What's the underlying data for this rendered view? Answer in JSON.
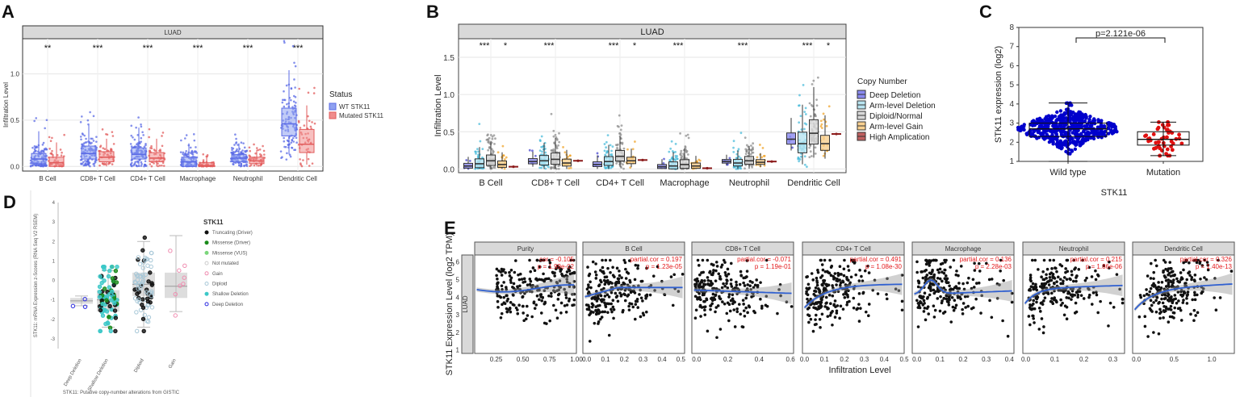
{
  "figure": {
    "panel_labels": [
      "A",
      "B",
      "C",
      "D",
      "E"
    ]
  },
  "chart_data": [
    {
      "panel": "A",
      "type": "box",
      "strip": "LUAD",
      "ylabel": "Infiltration Level",
      "ylim": [
        -0.05,
        1.38
      ],
      "yticks": [
        "0.0",
        "0.5",
        "1.0"
      ],
      "categories": [
        "B Cell",
        "CD8+ T Cell",
        "CD4+ T Cell",
        "Macrophage",
        "Neutrophil",
        "Dendritic Cell"
      ],
      "significance": [
        "**",
        "***",
        "***",
        "***",
        "***",
        "***"
      ],
      "legend_title": "Status",
      "series": [
        {
          "name": "WT STK11",
          "color": "#5b6be6",
          "fill": "#8ea0f0",
          "boxes": [
            [
              0.0,
              0.03,
              0.08,
              0.14,
              0.38
            ],
            [
              0.0,
              0.08,
              0.14,
              0.22,
              0.45
            ],
            [
              0.0,
              0.08,
              0.13,
              0.2,
              0.42
            ],
            [
              0.0,
              0.0,
              0.05,
              0.1,
              0.25
            ],
            [
              0.0,
              0.05,
              0.09,
              0.13,
              0.25
            ],
            [
              0.13,
              0.33,
              0.46,
              0.63,
              1.04
            ]
          ]
        },
        {
          "name": "Mutated STK11",
          "color": "#e15b5b",
          "fill": "#f08c8c",
          "boxes": [
            [
              0.0,
              0.0,
              0.04,
              0.1,
              0.26
            ],
            [
              0.0,
              0.05,
              0.1,
              0.16,
              0.3
            ],
            [
              0.0,
              0.05,
              0.09,
              0.15,
              0.3
            ],
            [
              0.0,
              0.0,
              0.01,
              0.04,
              0.1
            ],
            [
              0.0,
              0.03,
              0.06,
              0.1,
              0.18
            ],
            [
              0.02,
              0.15,
              0.24,
              0.4,
              0.66
            ]
          ]
        }
      ]
    },
    {
      "panel": "B",
      "type": "box",
      "strip": "LUAD",
      "ylabel": "Infiltration Level",
      "ylim": [
        -0.05,
        1.75
      ],
      "yticks": [
        "0.0",
        "0.5",
        "1.0",
        "1.5"
      ],
      "categories": [
        "B Cell",
        "CD8+ T Cell",
        "CD4+ T Cell",
        "Macrophage",
        "Neutrophil",
        "Dendritic Cell"
      ],
      "significance": [
        [
          "***",
          "*"
        ],
        [
          "***",
          ""
        ],
        [
          "***",
          "*"
        ],
        [
          "***",
          ""
        ],
        [
          "***",
          ""
        ],
        [
          "***",
          "*"
        ]
      ],
      "legend_title": "Copy Number",
      "series": [
        {
          "name": "Deep Deletion",
          "color": "#3a3acc",
          "fill": "#8a8af0",
          "medians": [
            0.04,
            0.1,
            0.06,
            0.03,
            0.1,
            0.4
          ]
        },
        {
          "name": "Arm-level Deletion",
          "color": "#40b8d8",
          "fill": "#b8e4f0",
          "medians": [
            0.07,
            0.11,
            0.1,
            0.04,
            0.08,
            0.34
          ]
        },
        {
          "name": "Diploid/Normal",
          "color": "#888888",
          "fill": "#d8d8d8",
          "medians": [
            0.11,
            0.13,
            0.17,
            0.06,
            0.11,
            0.48
          ]
        },
        {
          "name": "Arm-level Gain",
          "color": "#f0a020",
          "fill": "#f8d090",
          "medians": [
            0.06,
            0.08,
            0.11,
            0.04,
            0.09,
            0.34
          ]
        },
        {
          "name": "High Amplication",
          "color": "#8b1a1a",
          "fill": "#c06060",
          "medians": [
            0.03,
            0.11,
            0.12,
            0.01,
            0.1,
            0.47
          ]
        }
      ]
    },
    {
      "panel": "C",
      "type": "box",
      "ylabel": "STK11 expression (log2)",
      "xlabel": "STK11",
      "ylim": [
        1,
        8
      ],
      "yticks": [
        "1",
        "2",
        "3",
        "4",
        "5",
        "6",
        "7",
        "8"
      ],
      "categories": [
        "Wild type",
        "Mutation"
      ],
      "boxes": [
        [
          1.0,
          2.3,
          2.7,
          3.0,
          4.05
        ],
        [
          1.3,
          1.85,
          2.15,
          2.55,
          3.05
        ]
      ],
      "annotation": "p=2.121e-06",
      "point_colors": [
        "#0000cc",
        "#e01010"
      ]
    },
    {
      "panel": "D",
      "type": "box",
      "ylabel": "STK11: mRNA Expression z-Scores (RNA Seq V2 RSEM)",
      "xlabel": "STK11: Putative copy-number alterations from GISTIC",
      "ylim": [
        -3.5,
        4
      ],
      "yticks": [
        "-3",
        "-2",
        "-1",
        "0",
        "1",
        "2",
        "3",
        "4"
      ],
      "categories": [
        "Deep Deletion",
        "Shallow Deletion",
        "Diploid",
        "Gain"
      ],
      "boxes": [
        [
          -1.3,
          -1.2,
          -1.05,
          -0.9,
          -0.8
        ],
        [
          -2.4,
          -1.6,
          -1.0,
          -0.5,
          0.5
        ],
        [
          -2.4,
          -0.8,
          -0.2,
          0.4,
          2.0
        ],
        [
          -1.6,
          -0.9,
          -0.3,
          0.4,
          2.3
        ]
      ],
      "legend_title": "STK11",
      "legend": [
        {
          "name": "Truncating (Driver)",
          "color": "#111111",
          "hollow": false
        },
        {
          "name": "Missense (Driver)",
          "color": "#1a8a1a",
          "hollow": false
        },
        {
          "name": "Missense (VUS)",
          "color": "#7bd67b",
          "hollow": false
        },
        {
          "name": "Not mutated",
          "color": "#cccccc",
          "hollow": true
        },
        {
          "name": "Gain",
          "color": "#f08cb0",
          "hollow": true
        },
        {
          "name": "Diploid",
          "color": "#a8c8d8",
          "hollow": true
        },
        {
          "name": "Shallow Deletion",
          "color": "#3cc8c8",
          "hollow": false
        },
        {
          "name": "Deep Deletion",
          "color": "#2a2ae0",
          "hollow": true
        }
      ]
    },
    {
      "panel": "E",
      "type": "scatter",
      "ylabel": "STK11 Expression Level (log2 TPM)",
      "xlabel": "Infiltration Level",
      "row_strip": "LUAD",
      "ylim": [
        0.8,
        6.4
      ],
      "yticks": [
        "1",
        "2",
        "3",
        "4",
        "5",
        "6"
      ],
      "panels": [
        {
          "name": "Purity",
          "cor": "cor = -0.105",
          "p": "p = 1.99e-02",
          "xticks": [
            "0.25",
            "0.50",
            "0.75",
            "1.00"
          ],
          "xvals": [
            0.25,
            0.5,
            0.75,
            1.0
          ],
          "xlim": [
            0.05,
            1.0
          ]
        },
        {
          "name": "B Cell",
          "cor": "partial.cor = 0.197",
          "p": "p = 1.23e-05",
          "xticks": [
            "0.0",
            "0.1",
            "0.2",
            "0.3",
            "0.4",
            "0.5"
          ],
          "xvals": [
            0,
            0.1,
            0.2,
            0.3,
            0.4,
            0.5
          ],
          "xlim": [
            -0.02,
            0.52
          ]
        },
        {
          "name": "CD8+ T Cell",
          "cor": "partial.cor = -0.071",
          "p": "p = 1.19e-01",
          "xticks": [
            "0.0",
            "0.2",
            "0.4",
            "0.6"
          ],
          "xvals": [
            0,
            0.2,
            0.4,
            0.6
          ],
          "xlim": [
            -0.03,
            0.62
          ]
        },
        {
          "name": "CD4+ T Cell",
          "cor": "partial.cor = 0.491",
          "p": "p = 1.08e-30",
          "xticks": [
            "0.0",
            "0.1",
            "0.2",
            "0.3",
            "0.4",
            "0.5"
          ],
          "xvals": [
            0,
            0.1,
            0.2,
            0.3,
            0.4,
            0.5
          ],
          "xlim": [
            -0.01,
            0.5
          ]
        },
        {
          "name": "Macrophage",
          "cor": "partial.cor = 0.136",
          "p": "p = 2.28e-03",
          "xticks": [
            "0.0",
            "0.1",
            "0.2",
            "0.3",
            "0.4"
          ],
          "xvals": [
            0,
            0.1,
            0.2,
            0.3,
            0.4
          ],
          "xlim": [
            -0.02,
            0.42
          ]
        },
        {
          "name": "Neutrophil",
          "cor": "partial.cor = 0.215",
          "p": "p = 1.86e-06",
          "xticks": [
            "0.0",
            "0.1",
            "0.2",
            "0.3"
          ],
          "xvals": [
            0,
            0.1,
            0.2,
            0.3
          ],
          "xlim": [
            -0.01,
            0.34
          ]
        },
        {
          "name": "Dendritic Cell",
          "cor": "partial.cor = 0.326",
          "p": "p = 1.40e-13",
          "xticks": [
            "0.0",
            "0.5",
            "1.0"
          ],
          "xvals": [
            0,
            0.5,
            1.0
          ],
          "xlim": [
            -0.05,
            1.3
          ]
        }
      ]
    }
  ]
}
